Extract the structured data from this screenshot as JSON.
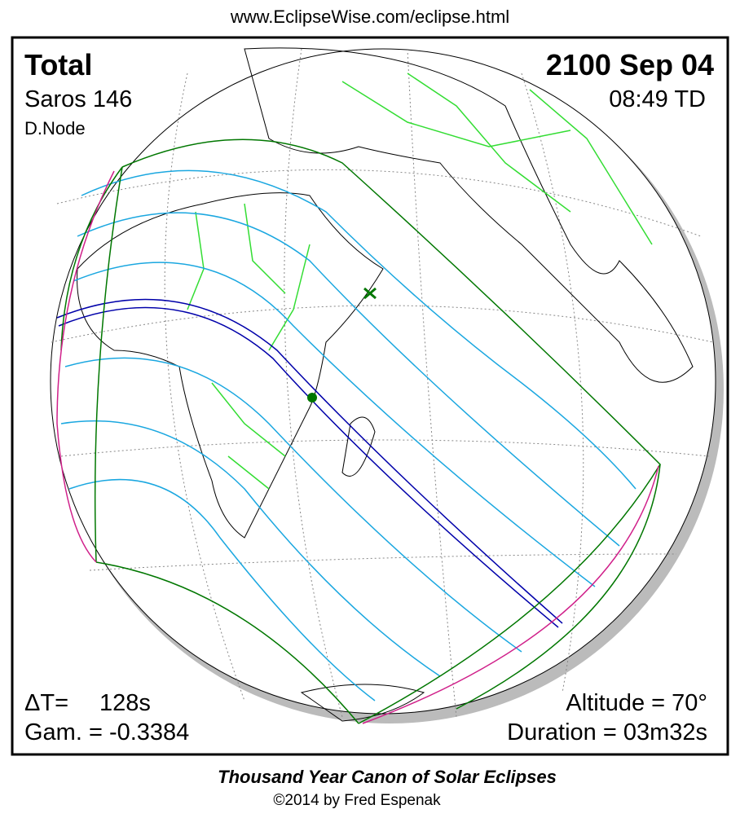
{
  "header": {
    "url": "www.EclipseWise.com/eclipse.html"
  },
  "panel": {
    "type": "Total",
    "date": "2100 Sep 04",
    "saros": "Saros 146",
    "time": "08:49 TD",
    "node": "D.Node",
    "delta_t_label": "ΔT=",
    "delta_t_value": "128s",
    "gamma": "Gam. = -0.3384",
    "altitude": "Altitude = 70°",
    "duration": "Duration = 03m32s"
  },
  "footer": {
    "title": "Thousand Year Canon of Solar Eclipses",
    "credit": "©2014 by Fred Espenak"
  }
}
